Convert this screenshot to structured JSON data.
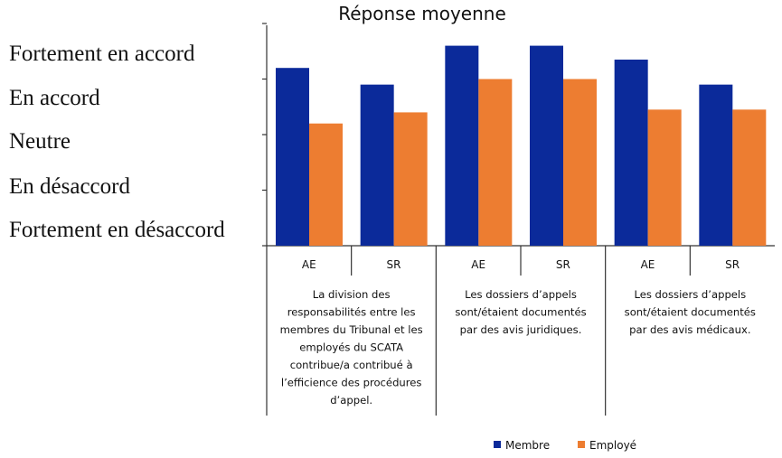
{
  "chart_data": {
    "type": "bar",
    "title": "Réponse moyenne",
    "y_scale_labels": [
      "Fortement en accord",
      "En accord",
      "Neutre",
      "En désaccord",
      "Fortement en désaccord"
    ],
    "ylim": [
      1,
      5
    ],
    "groups": [
      {
        "label_lines": [
          "La division des",
          "responsabilités entre les",
          "membres du Tribunal et les",
          "employés du SCATA",
          "contribue/a contribué à",
          "l’efficience des procédures",
          "d’appel."
        ],
        "subcategories": [
          "AE",
          "SR"
        ]
      },
      {
        "label_lines": [
          "Les dossiers d’appels",
          "sont/étaient documentés",
          "par des avis juridiques."
        ],
        "subcategories": [
          "AE",
          "SR"
        ]
      },
      {
        "label_lines": [
          "Les dossiers d’appels",
          "sont/étaient documentés",
          "par des avis médicaux."
        ],
        "subcategories": [
          "AE",
          "SR"
        ]
      }
    ],
    "series": [
      {
        "name": "Membre",
        "color": "#0b2a9a",
        "values": [
          4.2,
          3.9,
          4.6,
          4.6,
          4.35,
          3.9
        ]
      },
      {
        "name": "Employé",
        "color": "#ed7d31",
        "values": [
          3.2,
          3.4,
          4.0,
          4.0,
          3.45,
          3.45
        ]
      }
    ],
    "legend_position": "bottom-center",
    "grid": false
  }
}
